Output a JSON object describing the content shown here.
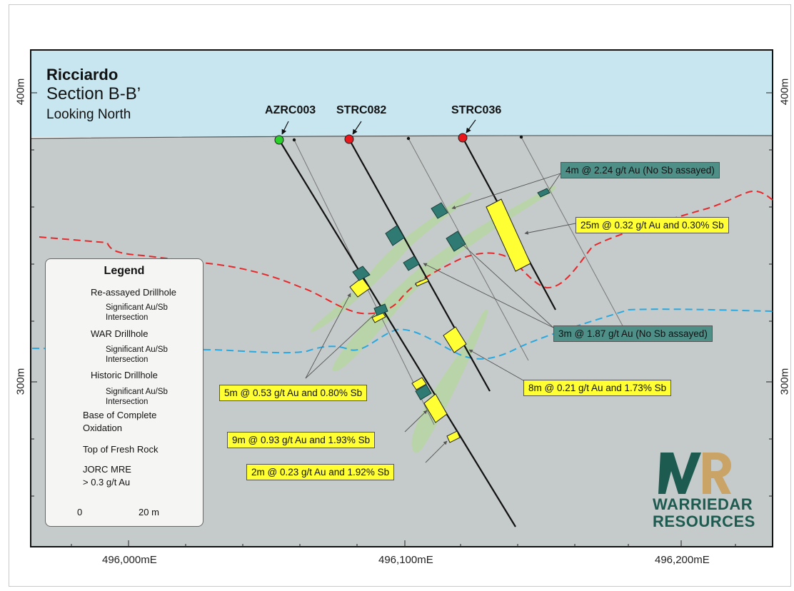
{
  "title": {
    "name": "Ricciardo",
    "section": "Section B-B’",
    "direction": "Looking North"
  },
  "elevation_labels": [
    "400m",
    "300m"
  ],
  "easting_labels": [
    "496,000mE",
    "496,100mE",
    "496,200mE"
  ],
  "drillholes": {
    "azrc003": "AZRC003",
    "strc082": "STRC082",
    "strc036": "STRC036"
  },
  "intercepts": {
    "i1": "4m @ 2.24 g/t Au (No Sb assayed)",
    "i2": "25m @ 0.32 g/t Au and 0.30% Sb",
    "i3": "3m @ 1.87 g/t Au (No Sb assayed)",
    "i4": "8m @ 0.21 g/t Au and 1.73% Sb",
    "i5": "5m @ 0.53 g/t Au and 0.80% Sb",
    "i6": "9m @ 0.93 g/t Au and 1.93% Sb",
    "i7": "2m @ 0.23 g/t Au and 1.92% Sb"
  },
  "legend": {
    "title": "Legend",
    "re_assayed": "Re-assayed Drillhole",
    "significant_1": "Significant Au/Sb",
    "intersection_1": "Intersection",
    "war": "WAR Drillhole",
    "significant_2": "Significant Au/Sb",
    "intersection_2": "Intersection",
    "historic": "Historic Drillhole",
    "significant_3": "Significant Au/Sb",
    "intersection_3": "Intersection",
    "boco_1": "Base of Complete",
    "boco_2": "Oxidation",
    "tofr": "Top of Fresh Rock",
    "jorc_1": "JORC MRE",
    "jorc_2": ">  0.3 g/t Au",
    "scale_start": "0",
    "scale_end": "20 m"
  },
  "logo": {
    "line1": "WARRIEDAR",
    "line2": "RESOURCES"
  },
  "colors": {
    "sky": "#c8e6f0",
    "ground": "#c5cbca",
    "yellow": "#ffff33",
    "teal": "#2f7a73",
    "red_hole": "#e8181d",
    "green_hole": "#2ad12a",
    "boco": "#e8272b",
    "tofr": "#2aa8e0",
    "mre": "#b6d6a2",
    "logo": "#1d5a50",
    "logo_accent": "#c9a466"
  }
}
